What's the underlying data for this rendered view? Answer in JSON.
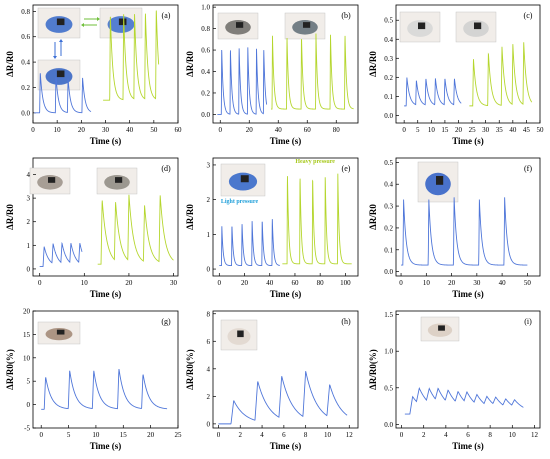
{
  "colors": {
    "blue": "#4f76d9",
    "green": "#b5d62e",
    "light_pressure": "#1f9fd9",
    "heavy_pressure": "#a6c81a"
  },
  "chart_data": [
    {
      "panel": "(a)",
      "type": "line",
      "xlabel": "Time (s)",
      "ylabel": "ΔR/R0",
      "xlim": [
        0,
        60
      ],
      "ylim": [
        -0.08,
        0.85
      ],
      "xticks": [
        0,
        10,
        20,
        30,
        40,
        50,
        60
      ],
      "yticks": [
        0.0,
        0.2,
        0.4,
        0.6,
        0.8
      ],
      "series": [
        {
          "color": "blue",
          "x_start": 0.5,
          "x_end": 24,
          "peaks": [
            [
              3.0,
              0.32
            ],
            [
              9.5,
              0.29
            ],
            [
              14.5,
              0.27
            ],
            [
              20.5,
              0.28
            ]
          ],
          "base": 0.0
        },
        {
          "color": "green",
          "x_start": 29,
          "x_end": 52,
          "peaks": [
            [
              32.0,
              0.78
            ],
            [
              37.5,
              0.78
            ],
            [
              42.0,
              0.78
            ],
            [
              46.5,
              0.79
            ],
            [
              51.0,
              0.82
            ]
          ],
          "base": 0.1
        }
      ],
      "photos": 3
    },
    {
      "panel": "(b)",
      "type": "line",
      "xlabel": "Time (s)",
      "ylabel": "ΔR/R0",
      "xlim": [
        -5,
        95
      ],
      "ylim": [
        -0.08,
        1.02
      ],
      "xticks": [
        0,
        20,
        40,
        60,
        80
      ],
      "yticks": [
        0.0,
        0.2,
        0.4,
        0.6,
        0.8,
        1.0
      ],
      "series": [
        {
          "color": "blue",
          "x_start": -2,
          "x_end": 32,
          "peaks": [
            [
              1,
              0.62
            ],
            [
              7,
              0.62
            ],
            [
              13,
              0.63
            ],
            [
              19,
              0.63
            ],
            [
              25,
              0.62
            ],
            [
              30,
              0.61
            ]
          ],
          "base": 0.0
        },
        {
          "color": "green",
          "x_start": 35,
          "x_end": 92,
          "peaks": [
            [
              36,
              0.75
            ],
            [
              46,
              0.75
            ],
            [
              56,
              0.76
            ],
            [
              66,
              0.76
            ],
            [
              76,
              0.77
            ],
            [
              86,
              0.78
            ]
          ],
          "base": 0.05
        }
      ],
      "photos": 2
    },
    {
      "panel": "(c)",
      "type": "line",
      "xlabel": "Time (s)",
      "ylabel": "ΔR/R0",
      "xlim": [
        -3,
        50
      ],
      "ylim": [
        -0.04,
        0.58
      ],
      "xticks": [
        0,
        5,
        10,
        15,
        20,
        25,
        30,
        35,
        40,
        45,
        50
      ],
      "yticks": [
        0.0,
        0.1,
        0.2,
        0.3,
        0.4,
        0.5
      ],
      "series": [
        {
          "color": "blue",
          "x_start": 0,
          "x_end": 21,
          "peaks": [
            [
              1.0,
              0.2
            ],
            [
              4.5,
              0.18
            ],
            [
              8.0,
              0.19
            ],
            [
              11.5,
              0.19
            ],
            [
              15.0,
              0.19
            ],
            [
              18.5,
              0.19
            ]
          ],
          "base": 0.05
        },
        {
          "color": "green",
          "x_start": 24,
          "x_end": 47,
          "peaks": [
            [
              25.5,
              0.3
            ],
            [
              31.0,
              0.33
            ],
            [
              36.0,
              0.36
            ],
            [
              40.0,
              0.37
            ],
            [
              44.0,
              0.38
            ]
          ],
          "base": 0.05
        }
      ],
      "photos": 2
    },
    {
      "panel": "(d)",
      "type": "line",
      "xlabel": "Time (s)",
      "ylabel": "ΔR/R0",
      "xlim": [
        -1.5,
        31
      ],
      "ylim": [
        -0.3,
        4.7
      ],
      "xticks": [
        0,
        10,
        20,
        30
      ],
      "yticks": [
        0,
        1,
        2,
        3,
        4
      ],
      "series": [
        {
          "color": "blue",
          "x_start": 0,
          "x_end": 9.5,
          "peaks": [
            [
              1.0,
              0.95
            ],
            [
              3.0,
              0.95
            ],
            [
              5.0,
              0.95
            ],
            [
              7.0,
              0.95
            ],
            [
              9.0,
              0.95
            ]
          ],
          "base": 0.1
        },
        {
          "color": "green",
          "x_start": 13,
          "x_end": 30,
          "peaks": [
            [
              14.0,
              2.95
            ],
            [
              17.0,
              2.7
            ],
            [
              20.0,
              3.0
            ],
            [
              23.5,
              2.6
            ],
            [
              27.0,
              3.05
            ]
          ],
          "base": 0.2
        }
      ],
      "photos": 2
    },
    {
      "panel": "(e)",
      "type": "line",
      "xlabel": "Time (s)",
      "ylabel": "ΔR/R0",
      "xlim": [
        -5,
        110
      ],
      "ylim": [
        -0.2,
        3.2
      ],
      "xticks": [
        0,
        20,
        40,
        60,
        80,
        100
      ],
      "yticks": [
        0,
        1,
        2,
        3
      ],
      "annotations": [
        "Light pressure",
        "Heavy pressure"
      ],
      "series": [
        {
          "color": "blue",
          "x_start": 0,
          "x_end": 48,
          "peaks": [
            [
              2,
              1.25
            ],
            [
              10,
              1.3
            ],
            [
              18,
              1.35
            ],
            [
              26,
              1.4
            ],
            [
              34,
              1.45
            ],
            [
              42,
              1.5
            ]
          ],
          "base": 0.1
        },
        {
          "color": "green",
          "x_start": 50,
          "x_end": 105,
          "peaks": [
            [
              54,
              2.85
            ],
            [
              64,
              2.8
            ],
            [
              74,
              2.75
            ],
            [
              84,
              2.75
            ],
            [
              94,
              2.75
            ]
          ],
          "base": 0.15
        }
      ],
      "photos": 1
    },
    {
      "panel": "(f)",
      "type": "line",
      "xlabel": "Time (s)",
      "ylabel": "ΔR/R0",
      "xlim": [
        -2,
        55
      ],
      "ylim": [
        -0.02,
        0.52
      ],
      "xticks": [
        0,
        10,
        20,
        30,
        40,
        50
      ],
      "yticks": [
        0.0,
        0.1,
        0.2,
        0.3,
        0.4,
        0.5
      ],
      "series": [
        {
          "color": "blue",
          "x_start": 0,
          "x_end": 50,
          "peaks": [
            [
              1.0,
              0.33
            ],
            [
              11.0,
              0.33
            ],
            [
              21.0,
              0.34
            ],
            [
              31.0,
              0.33
            ],
            [
              41.0,
              0.34
            ]
          ],
          "base": 0.03
        }
      ],
      "photos": 1
    },
    {
      "panel": "(g)",
      "type": "line",
      "xlabel": "Time (s)",
      "ylabel": "ΔR/R0(%)",
      "xlim": [
        -1.5,
        25
      ],
      "ylim": [
        -5,
        20
      ],
      "xticks": [
        0,
        5,
        10,
        15,
        20,
        25
      ],
      "yticks": [
        -5,
        0,
        5,
        10,
        15,
        20
      ],
      "series": [
        {
          "color": "blue",
          "x_start": 0,
          "x_end": 23,
          "peaks": [
            [
              0.8,
              6.0
            ],
            [
              5.2,
              7.2
            ],
            [
              9.6,
              7.2
            ],
            [
              14.2,
              7.6
            ],
            [
              18.6,
              6.5
            ]
          ],
          "base": -1.0
        }
      ],
      "photos": 1
    },
    {
      "panel": "(h)",
      "type": "line",
      "xlabel": "Time (s)",
      "ylabel": "ΔR/R0(%)",
      "xlim": [
        -0.5,
        12.8
      ],
      "ylim": [
        -0.3,
        8.2
      ],
      "xticks": [
        0,
        2,
        4,
        6,
        8,
        10,
        12
      ],
      "yticks": [
        0,
        2,
        4,
        6,
        8
      ],
      "series": [
        {
          "color": "blue",
          "x_start": 0,
          "x_end": 11.8,
          "peaks": [
            [
              1.4,
              1.7
            ],
            [
              3.6,
              2.9
            ],
            [
              5.8,
              3.1
            ],
            [
              8.0,
              3.4
            ],
            [
              10.2,
              2.4
            ]
          ],
          "base": 0.0
        }
      ],
      "photos": 1
    },
    {
      "panel": "(i)",
      "type": "line",
      "xlabel": "Time (s)",
      "ylabel": "ΔR/R0(%)",
      "xlim": [
        -0.5,
        12.5
      ],
      "ylim": [
        -0.05,
        1.55
      ],
      "xticks": [
        0,
        2,
        4,
        6,
        8,
        10,
        12
      ],
      "yticks": [
        0.0,
        0.5,
        1.0,
        1.5
      ],
      "series": [
        {
          "color": "blue",
          "x_start": 0.3,
          "x_end": 11,
          "peaks": [
            [
              1.0,
              0.38
            ],
            [
              1.6,
              0.36
            ],
            [
              2.5,
              0.34
            ],
            [
              3.3,
              0.33
            ],
            [
              4.2,
              0.32
            ],
            [
              5.1,
              0.31
            ],
            [
              5.9,
              0.3
            ],
            [
              6.8,
              0.28
            ],
            [
              7.7,
              0.27
            ],
            [
              8.5,
              0.26
            ],
            [
              9.4,
              0.25
            ],
            [
              10.2,
              0.24
            ]
          ],
          "base": 0.14
        }
      ],
      "photos": 1
    }
  ]
}
